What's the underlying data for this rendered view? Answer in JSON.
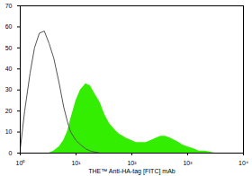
{
  "chart_data": {
    "type": "area",
    "x_label": "THE™ Anti-HA-tag [FITC] mAb",
    "x": [
      1,
      1.2,
      1.5,
      1.8,
      2.2,
      2.7,
      3.3,
      4,
      5,
      6,
      7,
      8,
      10,
      12,
      15,
      18,
      22,
      27,
      33,
      40,
      50,
      60,
      70,
      80,
      100,
      120,
      150,
      180,
      220,
      270,
      330,
      400,
      500,
      600,
      700,
      800,
      1000,
      1300,
      1600,
      2000,
      2500,
      3000,
      4000,
      5000
    ],
    "series": [
      {
        "type": "area",
        "color": "#33ee00",
        "values": [
          0,
          0,
          0,
          0,
          0,
          0,
          0,
          1,
          3,
          6,
          10,
          16,
          25,
          30,
          33,
          32,
          28,
          24,
          18,
          14,
          11,
          9,
          8,
          7,
          6,
          5,
          5,
          5,
          6,
          7,
          8,
          8,
          7,
          6,
          5,
          4,
          3,
          2,
          1,
          1,
          0.5,
          0,
          0,
          0
        ]
      },
      {
        "type": "line",
        "color": "#555555",
        "values": [
          2,
          20,
          38,
          50,
          57,
          58,
          52,
          45,
          33,
          22,
          15,
          10,
          6,
          4,
          2,
          1,
          0.5,
          0,
          0,
          0,
          0,
          0,
          0,
          0,
          0,
          0,
          0,
          0,
          0,
          0,
          0,
          0,
          0,
          0,
          0,
          0,
          0,
          0,
          0,
          0,
          0,
          0,
          0,
          0
        ]
      }
    ],
    "log": "x",
    "grid": false,
    "xlim": [
      1,
      10000
    ],
    "xticks": [
      {
        "value": 1,
        "label": "10⁰"
      },
      {
        "value": 10,
        "label": "10¹"
      },
      {
        "value": 100,
        "label": "10²"
      },
      {
        "value": 1000,
        "label": "10³"
      },
      {
        "value": 10000,
        "label": "10⁴"
      }
    ],
    "ylim": [
      0,
      70
    ],
    "yticks": [
      0,
      10,
      20,
      30,
      40,
      50,
      60,
      70
    ]
  }
}
